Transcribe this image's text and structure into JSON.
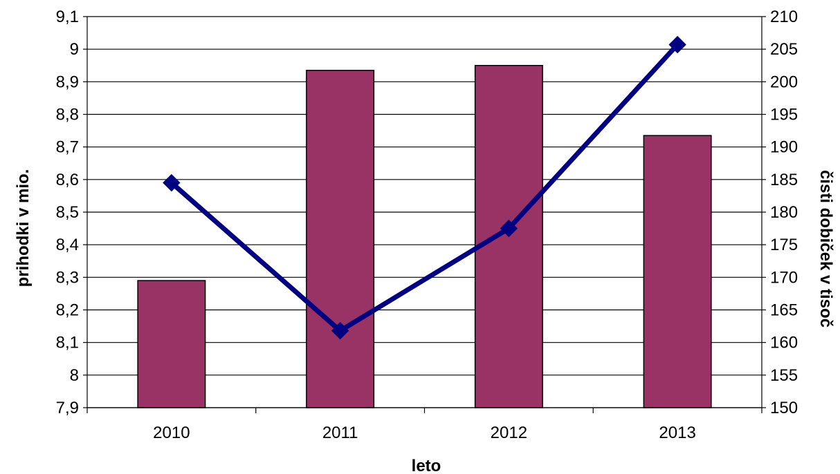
{
  "chart_data": {
    "type": "bar",
    "categories": [
      "2010",
      "2011",
      "2012",
      "2013"
    ],
    "xlabel": "leto",
    "ylabel": "prihodki  v mio.",
    "y2label": "čisti dobiček v tisoč",
    "ylim": [
      7.9,
      9.1
    ],
    "y2lim": [
      150,
      210
    ],
    "yticks": [
      "7,9",
      "8",
      "8,1",
      "8,2",
      "8,3",
      "8,4",
      "8,5",
      "8,6",
      "8,7",
      "8,8",
      "8,9",
      "9",
      "9,1"
    ],
    "y2ticks": [
      "150",
      "155",
      "160",
      "165",
      "170",
      "175",
      "180",
      "185",
      "190",
      "195",
      "200",
      "205",
      "210"
    ],
    "grid": true,
    "legend": "none",
    "series": [
      {
        "type": "bar",
        "axis": "left",
        "values": [
          8.29,
          8.935,
          8.95,
          8.735
        ],
        "color": "#993366"
      },
      {
        "type": "line",
        "axis": "right",
        "marker": "diamond",
        "values": [
          184.5,
          161.8,
          177.5,
          205.7
        ],
        "color": "#000080"
      }
    ]
  }
}
